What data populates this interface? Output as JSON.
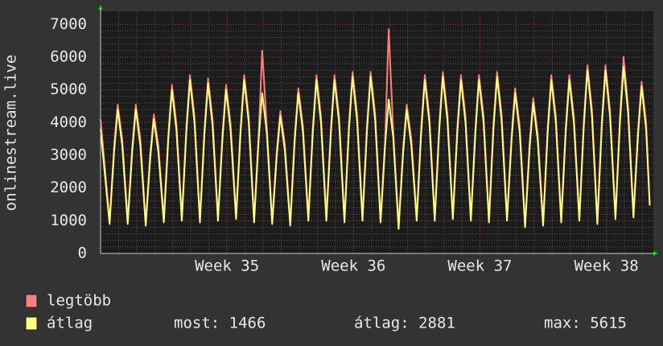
{
  "chart_data": {
    "type": "line",
    "ylabel": "onlinestream.live",
    "x": [
      0,
      0.5,
      0.75,
      0.95,
      1.2,
      1.5,
      1.75,
      1.95,
      2.2,
      2.5,
      2.75,
      2.95,
      3.2,
      3.5,
      3.75,
      3.95,
      4.2,
      4.5,
      4.75,
      4.95,
      5.2,
      5.5,
      5.75,
      5.95,
      6.2,
      6.5,
      6.75,
      6.95,
      7.2,
      7.5,
      7.75,
      7.95,
      8.2,
      8.5,
      8.75,
      8.95,
      9.2,
      9.5,
      9.75,
      9.95,
      10.2,
      10.5,
      10.75,
      10.95,
      11.2,
      11.5,
      11.75,
      11.95,
      12.2,
      12.5,
      12.75,
      12.95,
      13.2,
      13.5,
      13.75,
      13.95,
      14.2,
      14.5,
      14.75,
      14.95,
      15.2,
      15.5,
      15.75,
      15.95,
      16.2,
      16.5,
      16.75,
      16.95,
      17.2,
      17.5,
      17.75,
      17.95,
      18.2,
      18.5,
      18.75,
      18.95,
      19.2,
      19.5,
      19.75,
      19.95,
      20.2,
      20.5,
      20.75,
      20.95,
      21.2,
      21.5,
      21.75,
      21.95,
      22.2,
      22.5,
      22.75,
      22.95,
      23.2,
      23.5,
      23.75,
      23.95,
      24.2,
      24.5,
      24.75,
      24.95,
      25.2,
      25.5,
      25.75,
      25.95,
      26.2,
      26.5,
      26.75,
      26.95,
      27.2,
      27.5,
      27.75,
      27.95,
      28.2,
      28.5,
      28.75,
      28.95,
      29.2,
      29.5,
      29.75,
      29.95,
      30.2,
      30.4
    ],
    "series": [
      {
        "name": "legtöbb",
        "color": "#ff7f7f",
        "values": [
          4100,
          1000,
          3250,
          4550,
          3500,
          1000,
          3250,
          4550,
          3500,
          950,
          3050,
          4250,
          3300,
          1050,
          3650,
          5150,
          3950,
          1100,
          3850,
          5450,
          4200,
          1050,
          3800,
          5350,
          4100,
          1100,
          3650,
          5150,
          3950,
          1150,
          3850,
          5450,
          4200,
          1050,
          3600,
          6200,
          3900,
          1000,
          3100,
          4350,
          3350,
          950,
          3600,
          5050,
          3900,
          1100,
          3850,
          5450,
          4200,
          1100,
          3850,
          5450,
          4200,
          1050,
          3950,
          5550,
          4250,
          1100,
          3950,
          5550,
          4250,
          1050,
          3450,
          6850,
          3750,
          850,
          3250,
          4550,
          3500,
          1100,
          3850,
          5450,
          4200,
          1100,
          3950,
          5550,
          4250,
          1150,
          3850,
          5450,
          4200,
          1100,
          3850,
          5450,
          4200,
          1050,
          3950,
          5550,
          4250,
          1100,
          3600,
          5050,
          3900,
          900,
          3350,
          4750,
          3650,
          950,
          3850,
          5450,
          4200,
          1050,
          3850,
          5450,
          4200,
          1100,
          4050,
          5750,
          4400,
          1000,
          4050,
          5750,
          4400,
          1150,
          4150,
          6000,
          4500,
          1200,
          3750,
          5250,
          4000,
          1500
        ]
      },
      {
        "name": "átlag",
        "color": "#ffff7f",
        "values": [
          3800,
          900,
          3100,
          4400,
          3300,
          900,
          3100,
          4400,
          3300,
          850,
          2900,
          4100,
          3100,
          950,
          3500,
          5000,
          3750,
          1000,
          3700,
          5300,
          4000,
          950,
          3650,
          5200,
          3900,
          1000,
          3500,
          5000,
          3750,
          1050,
          3700,
          5300,
          4000,
          950,
          3450,
          4900,
          3700,
          900,
          2950,
          4200,
          3150,
          850,
          3450,
          4900,
          3700,
          1000,
          3700,
          5300,
          4000,
          1000,
          3700,
          5300,
          4000,
          950,
          3800,
          5400,
          4050,
          1000,
          3800,
          5400,
          4050,
          950,
          3300,
          4700,
          3550,
          750,
          3100,
          4400,
          3300,
          1000,
          3700,
          5300,
          4000,
          1000,
          3800,
          5400,
          4050,
          1050,
          3700,
          5300,
          4000,
          1000,
          3700,
          5300,
          4000,
          950,
          3800,
          5400,
          4050,
          1000,
          3450,
          4900,
          3700,
          800,
          3200,
          4600,
          3450,
          850,
          3700,
          5300,
          4000,
          950,
          3700,
          5300,
          4000,
          1000,
          3900,
          5600,
          4200,
          900,
          3900,
          5600,
          4200,
          1050,
          4000,
          5700,
          4300,
          1100,
          3600,
          5100,
          3800,
          1466
        ]
      }
    ],
    "xlim": [
      0,
      30.6
    ],
    "xticks": [
      {
        "value": 7,
        "label": "Week 35"
      },
      {
        "value": 14,
        "label": "Week 36"
      },
      {
        "value": 21,
        "label": "Week 37"
      },
      {
        "value": 28,
        "label": "Week 38"
      }
    ],
    "ylim": [
      0,
      7400
    ],
    "yticks": [
      0,
      1000,
      2000,
      3000,
      4000,
      5000,
      6000,
      7000
    ],
    "grid": true,
    "stats": [
      "most: 1466",
      "átlag: 2881",
      "max: 5615"
    ]
  }
}
